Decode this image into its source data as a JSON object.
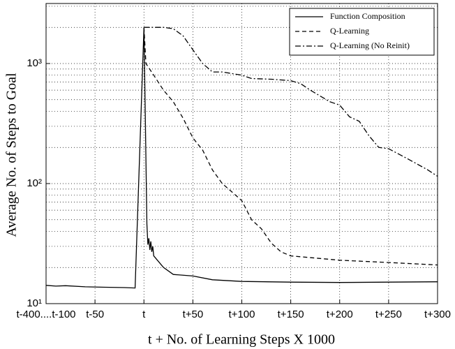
{
  "chart_data": {
    "type": "line",
    "xlabel": "t + No.  of Learning Steps  X 1000",
    "ylabel": "Average No. of  Steps to Goal",
    "xlim": [
      -100,
      300
    ],
    "xticks": [
      {
        "value": -100,
        "label": "t-400....t-100"
      },
      {
        "value": -50,
        "label": "t-50"
      },
      {
        "value": 0,
        "label": "t"
      },
      {
        "value": 50,
        "label": "t+50"
      },
      {
        "value": 100,
        "label": "t+100"
      },
      {
        "value": 150,
        "label": "t+150"
      },
      {
        "value": 200,
        "label": "t+200"
      },
      {
        "value": 250,
        "label": "t+250"
      },
      {
        "value": 300,
        "label": "t+300"
      }
    ],
    "ylim": [
      10,
      3162
    ],
    "yscale": "log",
    "yticks": [
      {
        "value": 10,
        "label": "10¹"
      },
      {
        "value": 100,
        "label": "10²"
      },
      {
        "value": 1000,
        "label": "10³"
      }
    ],
    "yminorticks": [
      20,
      30,
      40,
      50,
      60,
      70,
      80,
      90,
      200,
      300,
      400,
      500,
      600,
      700,
      800,
      900,
      2000,
      3000
    ],
    "grid": true,
    "legend": "upper right",
    "series": [
      {
        "name": "Function Composition",
        "color": "#000000",
        "dash": "solid",
        "x": [
          -100,
          -90,
          -80,
          -60,
          -40,
          -20,
          -9,
          0,
          3,
          4,
          5,
          6,
          7,
          8,
          9,
          10,
          20,
          30,
          50,
          70,
          100,
          150,
          200,
          250,
          300
        ],
        "values": [
          14.2,
          14.0,
          14.1,
          13.8,
          13.7,
          13.6,
          13.5,
          2000,
          46,
          31,
          35,
          28,
          33,
          27,
          30,
          25,
          20,
          17.5,
          17,
          15.8,
          15.3,
          15.1,
          15.0,
          15.1,
          15.2
        ]
      },
      {
        "name": "Q-Learning",
        "color": "#000000",
        "dash": "dashed",
        "x": [
          0,
          2,
          10,
          20,
          30,
          40,
          50,
          60,
          70,
          80,
          90,
          100,
          110,
          120,
          130,
          140,
          150,
          200,
          250,
          300
        ],
        "values": [
          2000,
          1000,
          800,
          600,
          480,
          350,
          240,
          190,
          130,
          100,
          85,
          72,
          50,
          42,
          32,
          27,
          25,
          23,
          22,
          21
        ]
      },
      {
        "name": "Q-Learning (No Reinit)",
        "color": "#000000",
        "dash": "dashdot",
        "x": [
          0,
          20,
          30,
          40,
          50,
          60,
          70,
          80,
          100,
          110,
          130,
          150,
          160,
          170,
          190,
          200,
          210,
          220,
          230,
          240,
          250,
          270,
          290,
          300
        ],
        "values": [
          2000,
          2000,
          1950,
          1700,
          1300,
          1000,
          850,
          850,
          800,
          750,
          740,
          720,
          680,
          600,
          480,
          450,
          360,
          330,
          250,
          200,
          195,
          160,
          130,
          115
        ]
      }
    ]
  }
}
